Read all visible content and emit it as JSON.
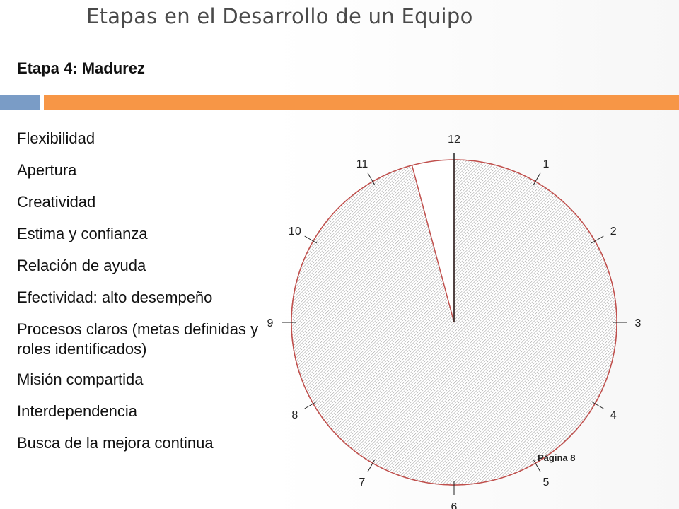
{
  "title": "Etapas en el Desarrollo de un Equipo",
  "subtitle": "Etapa 4: Madurez",
  "accent_colors": {
    "blue_bar": "#7a9cc6",
    "orange_bar": "#f79646",
    "pie_stroke": "#c0504d"
  },
  "items": [
    "Flexibilidad",
    "Apertura",
    "Creatividad",
    "Estima y confianza",
    "Relación de ayuda",
    "Efectividad: alto desempeño",
    "Procesos claros (metas definidas y roles identificados)",
    "Misión compartida",
    "Interdependencia",
    "Busca de la mejora continua"
  ],
  "clock": {
    "numbers": [
      "12",
      "1",
      "2",
      "3",
      "4",
      "5",
      "6",
      "7",
      "8",
      "9",
      "10",
      "11"
    ],
    "filled_from_hour": 0,
    "filled_to_hour": 11.5
  },
  "page_label": "Página 8"
}
